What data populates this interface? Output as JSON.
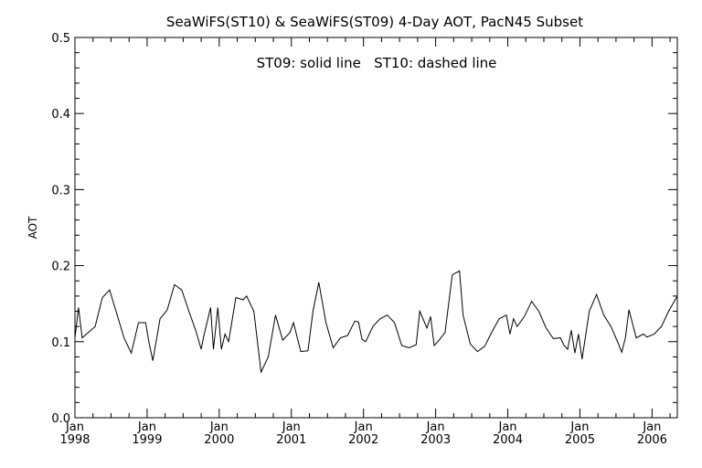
{
  "chart_data": {
    "type": "line",
    "title": "SeaWiFS(ST10) & SeaWiFS(ST09) 4-Day AOT, PacN45 Subset",
    "annotation": "ST09: solid line   ST10: dashed line",
    "ylabel": "AOT",
    "xlabel": "",
    "ylim": [
      0.0,
      0.5
    ],
    "xlim": [
      1998.0,
      2006.35
    ],
    "yticks": [
      "0.0",
      "0.1",
      "0.2",
      "0.3",
      "0.4",
      "0.5"
    ],
    "xticks_month": [
      "Jan",
      "Jan",
      "Jan",
      "Jan",
      "Jan",
      "Jan",
      "Jan",
      "Jan",
      "Jan"
    ],
    "xticks_year": [
      "1998",
      "1999",
      "2000",
      "2001",
      "2002",
      "2003",
      "2004",
      "2005",
      "2006"
    ],
    "grid": false,
    "series": [
      {
        "name": "ST09",
        "style": "solid",
        "x": [
          1998.0,
          1998.05,
          1998.1,
          1998.28,
          1998.38,
          1998.48,
          1998.68,
          1998.78,
          1998.88,
          1998.98,
          1999.03,
          1999.08,
          1999.18,
          1999.28,
          1999.38,
          1999.48,
          1999.58,
          1999.68,
          1999.75,
          1999.78,
          1999.88,
          1999.92,
          1999.98,
          2000.03,
          2000.08,
          2000.13,
          2000.23,
          2000.33,
          2000.38,
          2000.48,
          2000.58,
          2000.68,
          2000.78,
          2000.88,
          2000.98,
          2001.03,
          2001.13,
          2001.23,
          2001.3,
          2001.38,
          2001.48,
          2001.58,
          2001.68,
          2001.78,
          2001.88,
          2001.93,
          2001.98,
          2002.03,
          2002.13,
          2002.23,
          2002.33,
          2002.43,
          2002.53,
          2002.63,
          2002.73,
          2002.78,
          2002.88,
          2002.93,
          2002.98,
          2003.03,
          2003.13,
          2003.23,
          2003.33,
          2003.38,
          2003.48,
          2003.58,
          2003.68,
          2003.78,
          2003.88,
          2003.98,
          2004.03,
          2004.08,
          2004.13,
          2004.23,
          2004.33,
          2004.43,
          2004.53,
          2004.63,
          2004.73,
          2004.78,
          2004.83,
          2004.88,
          2004.93,
          2004.98,
          2005.03,
          2005.13,
          2005.23,
          2005.33,
          2005.43,
          2005.53,
          2005.58,
          2005.63,
          2005.68,
          2005.78,
          2005.88,
          2005.93,
          2005.98,
          2006.03,
          2006.13,
          2006.23,
          2006.35
        ],
        "values": [
          0.105,
          0.145,
          0.105,
          0.12,
          0.158,
          0.168,
          0.105,
          0.085,
          0.125,
          0.125,
          0.097,
          0.075,
          0.13,
          0.142,
          0.175,
          0.168,
          0.14,
          0.113,
          0.09,
          0.105,
          0.145,
          0.09,
          0.145,
          0.09,
          0.11,
          0.1,
          0.158,
          0.155,
          0.16,
          0.14,
          0.06,
          0.08,
          0.135,
          0.102,
          0.112,
          0.125,
          0.087,
          0.088,
          0.14,
          0.178,
          0.125,
          0.092,
          0.105,
          0.108,
          0.127,
          0.126,
          0.103,
          0.1,
          0.12,
          0.13,
          0.135,
          0.125,
          0.095,
          0.092,
          0.096,
          0.14,
          0.118,
          0.133,
          0.095,
          0.1,
          0.112,
          0.188,
          0.193,
          0.135,
          0.097,
          0.087,
          0.094,
          0.113,
          0.13,
          0.135,
          0.11,
          0.13,
          0.12,
          0.133,
          0.153,
          0.14,
          0.118,
          0.104,
          0.105,
          0.095,
          0.09,
          0.115,
          0.085,
          0.11,
          0.077,
          0.14,
          0.162,
          0.135,
          0.12,
          0.098,
          0.086,
          0.105,
          0.142,
          0.105,
          0.11,
          0.106,
          0.108,
          0.11,
          0.12,
          0.14,
          0.16
        ]
      }
    ]
  }
}
